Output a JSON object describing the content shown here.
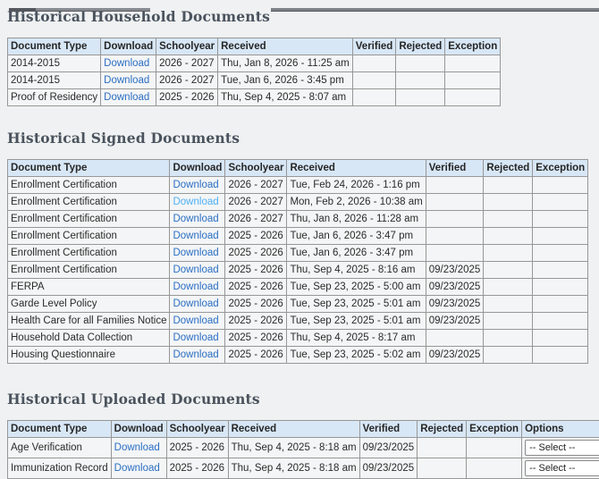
{
  "colors": {
    "page_bg": "#eff1f2",
    "table_header_bg": "#d8e7f6",
    "table_row_bg": "#f4f5f6",
    "table_border": "#979797",
    "link": "#2b6fc3",
    "link_light": "#4fb0f5",
    "title_text": "#4a535d"
  },
  "sections": [
    {
      "title": "Historical Household Documents",
      "columns": [
        "Document Type",
        "Download",
        "Schoolyear",
        "Received",
        "Verified",
        "Rejected",
        "Exception"
      ],
      "rows": [
        {
          "document_type": "2014-2015",
          "download_label": "Download",
          "schoolyear": "2026 - 2027",
          "received": "Thu, Jan 8, 2026 - 11:25 am",
          "verified": "",
          "rejected": "",
          "exception": ""
        },
        {
          "document_type": "2014-2015",
          "download_label": "Download",
          "schoolyear": "2026 - 2027",
          "received": "Tue, Jan 6, 2026 - 3:45 pm",
          "verified": "",
          "rejected": "",
          "exception": ""
        },
        {
          "document_type": "Proof of Residency",
          "download_label": "Download",
          "schoolyear": "2025 - 2026",
          "received": "Thu, Sep 4, 2025 - 8:07 am",
          "verified": "",
          "rejected": "",
          "exception": ""
        }
      ]
    },
    {
      "title": "Historical Signed Documents",
      "columns": [
        "Document Type",
        "Download",
        "Schoolyear",
        "Received",
        "Verified",
        "Rejected",
        "Exception"
      ],
      "rows": [
        {
          "document_type": "Enrollment Certification",
          "download_label": "Download",
          "schoolyear": "2026 - 2027",
          "received": "Tue, Feb 24, 2026 - 1:16 pm",
          "verified": "",
          "rejected": "",
          "exception": ""
        },
        {
          "document_type": "Enrollment Certification",
          "download_label": "Download",
          "link_variant": "light",
          "schoolyear": "2026 - 2027",
          "received": "Mon, Feb 2, 2026 - 10:38 am",
          "verified": "",
          "rejected": "",
          "exception": ""
        },
        {
          "document_type": "Enrollment Certification",
          "download_label": "Download",
          "schoolyear": "2026 - 2027",
          "received": "Thu, Jan 8, 2026 - 11:28 am",
          "verified": "",
          "rejected": "",
          "exception": ""
        },
        {
          "document_type": "Enrollment Certification",
          "download_label": "Download",
          "schoolyear": "2025 - 2026",
          "received": "Tue, Jan 6, 2026 - 3:47 pm",
          "verified": "",
          "rejected": "",
          "exception": ""
        },
        {
          "document_type": "Enrollment Certification",
          "download_label": "Download",
          "schoolyear": "2025 - 2026",
          "received": "Tue, Jan 6, 2026 - 3:47 pm",
          "verified": "",
          "rejected": "",
          "exception": ""
        },
        {
          "document_type": "Enrollment Certification",
          "download_label": "Download",
          "schoolyear": "2025 - 2026",
          "received": "Thu, Sep 4, 2025 - 8:16 am",
          "verified": "09/23/2025",
          "rejected": "",
          "exception": ""
        },
        {
          "document_type": "FERPA",
          "download_label": "Download",
          "schoolyear": "2025 - 2026",
          "received": "Tue, Sep 23, 2025 - 5:00 am",
          "verified": "09/23/2025",
          "rejected": "",
          "exception": ""
        },
        {
          "document_type": "Garde Level Policy",
          "download_label": "Download",
          "schoolyear": "2025 - 2026",
          "received": "Tue, Sep 23, 2025 - 5:01 am",
          "verified": "09/23/2025",
          "rejected": "",
          "exception": ""
        },
        {
          "document_type": "Health Care for all Families Notice",
          "download_label": "Download",
          "schoolyear": "2025 - 2026",
          "received": "Tue, Sep 23, 2025 - 5:01 am",
          "verified": "09/23/2025",
          "rejected": "",
          "exception": ""
        },
        {
          "document_type": "Household Data Collection",
          "download_label": "Download",
          "schoolyear": "2025 - 2026",
          "received": "Thu, Sep 4, 2025 - 8:17 am",
          "verified": "",
          "rejected": "",
          "exception": ""
        },
        {
          "document_type": "Housing Questionnaire",
          "download_label": "Download",
          "schoolyear": "2025 - 2026",
          "received": "Tue, Sep 23, 2025 - 5:02 am",
          "verified": "09/23/2025",
          "rejected": "",
          "exception": ""
        }
      ]
    },
    {
      "title": "Historical Uploaded Documents",
      "columns": [
        "Document Type",
        "Download",
        "Schoolyear",
        "Received",
        "Verified",
        "Rejected",
        "Exception",
        "Options"
      ],
      "rows": [
        {
          "document_type": "Age Verification",
          "download_label": "Download",
          "schoolyear": "2025 - 2026",
          "received": "Thu, Sep 4, 2025 - 8:18 am",
          "verified": "09/23/2025",
          "rejected": "",
          "exception": "",
          "options_value": "-- Select --"
        },
        {
          "document_type": "Immunization Record",
          "download_label": "Download",
          "schoolyear": "2025 - 2026",
          "received": "Thu, Sep 4, 2025 - 8:18 am",
          "verified": "09/23/2025",
          "rejected": "",
          "exception": "",
          "options_value": "-- Select --"
        }
      ]
    }
  ]
}
